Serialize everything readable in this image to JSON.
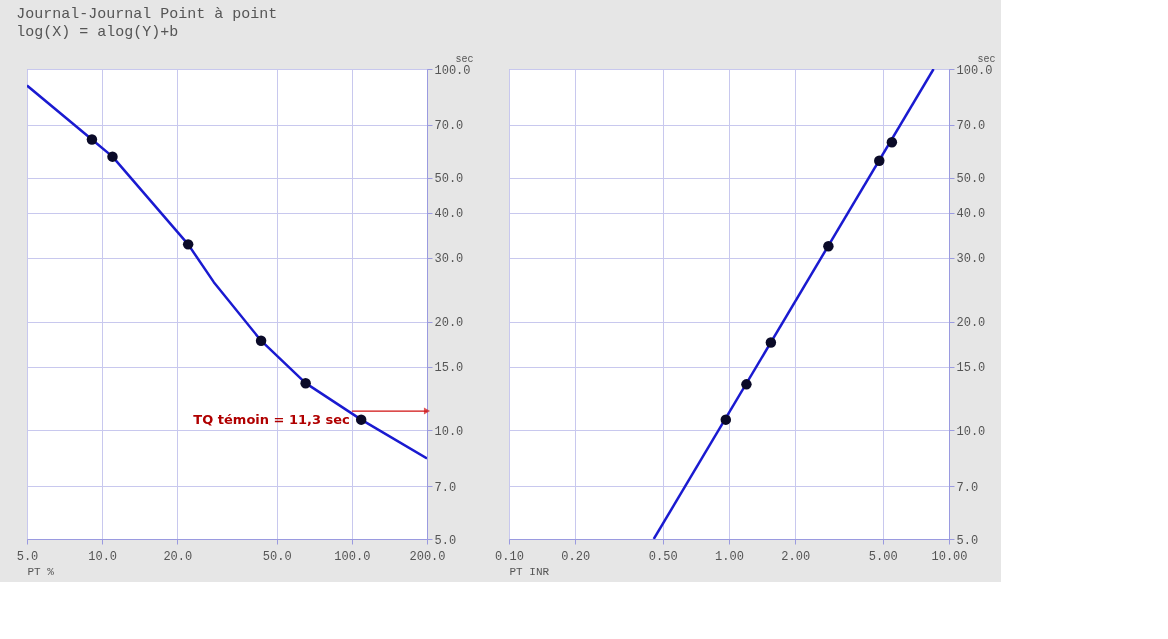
{
  "chart_data": [
    {
      "type": "line",
      "title": "Journal-Journal Point à point",
      "subtitle": "log(X) = alog(Y)+b",
      "xlabel": "PT %",
      "ylabel": "sec",
      "log": "xy",
      "grid": true,
      "xlim": [
        5,
        200
      ],
      "ylim": [
        5,
        100
      ],
      "xticks": [
        {
          "value": 5,
          "label": "5.0"
        },
        {
          "value": 10,
          "label": "10.0"
        },
        {
          "value": 20,
          "label": "20.0"
        },
        {
          "value": 50,
          "label": "50.0"
        },
        {
          "value": 100,
          "label": "100.0"
        },
        {
          "value": 200,
          "label": "200.0"
        }
      ],
      "yticks": [
        {
          "value": 5,
          "label": "5.0"
        },
        {
          "value": 7,
          "label": "7.0"
        },
        {
          "value": 10,
          "label": "10.0"
        },
        {
          "value": 15,
          "label": "15.0"
        },
        {
          "value": 20,
          "label": "20.0"
        },
        {
          "value": 30,
          "label": "30.0"
        },
        {
          "value": 40,
          "label": "40.0"
        },
        {
          "value": 50,
          "label": "50.0"
        },
        {
          "value": 70,
          "label": "70.0"
        },
        {
          "value": 100,
          "label": "100.0"
        }
      ],
      "annotations": [
        {
          "text": "TQ témoin = 11,3 sec",
          "x": 100,
          "y": 11.3
        }
      ],
      "series": [
        {
          "color": "#1a1ad0",
          "line_style": "solid",
          "x": [
            5,
            9.1,
            11.0,
            22.1,
            28,
            43.3,
            65.3,
            109,
            200
          ],
          "values": [
            90,
            63.8,
            57.2,
            32.7,
            25.7,
            17.7,
            13.5,
            10.7,
            8.35
          ]
        },
        {
          "type": "scatter",
          "color": "#0a0a28",
          "marker": "circle",
          "x": [
            9.1,
            11.0,
            22.1,
            43.3,
            65.3,
            109
          ],
          "values": [
            63.8,
            57.2,
            32.7,
            17.7,
            13.5,
            10.7
          ]
        }
      ]
    },
    {
      "type": "line",
      "xlabel": "PT INR",
      "ylabel": "sec",
      "log": "xy",
      "grid": true,
      "xlim": [
        0.1,
        10
      ],
      "ylim": [
        5,
        100
      ],
      "xticks": [
        {
          "value": 0.1,
          "label": "0.10"
        },
        {
          "value": 0.2,
          "label": "0.20"
        },
        {
          "value": 0.5,
          "label": "0.50"
        },
        {
          "value": 1,
          "label": "1.00"
        },
        {
          "value": 2,
          "label": "2.00"
        },
        {
          "value": 5,
          "label": "5.00"
        },
        {
          "value": 10,
          "label": "10.00"
        }
      ],
      "yticks": [
        {
          "value": 5,
          "label": "5.0"
        },
        {
          "value": 7,
          "label": "7.0"
        },
        {
          "value": 10,
          "label": "10.0"
        },
        {
          "value": 15,
          "label": "15.0"
        },
        {
          "value": 20,
          "label": "20.0"
        },
        {
          "value": 30,
          "label": "30.0"
        },
        {
          "value": 40,
          "label": "40.0"
        },
        {
          "value": 50,
          "label": "50.0"
        },
        {
          "value": 70,
          "label": "70.0"
        },
        {
          "value": 100,
          "label": "100.0"
        }
      ],
      "series": [
        {
          "color": "#1a1ad0",
          "line_style": "solid",
          "x": [
            0.455,
            8.51
          ],
          "values": [
            5,
            100
          ]
        },
        {
          "type": "scatter",
          "color": "#0a0a28",
          "marker": "circle",
          "x": [
            0.967,
            1.2,
            1.55,
            2.83,
            4.82,
            5.5
          ],
          "values": [
            10.7,
            13.4,
            17.5,
            32.3,
            55.7,
            62.7
          ]
        }
      ]
    }
  ]
}
